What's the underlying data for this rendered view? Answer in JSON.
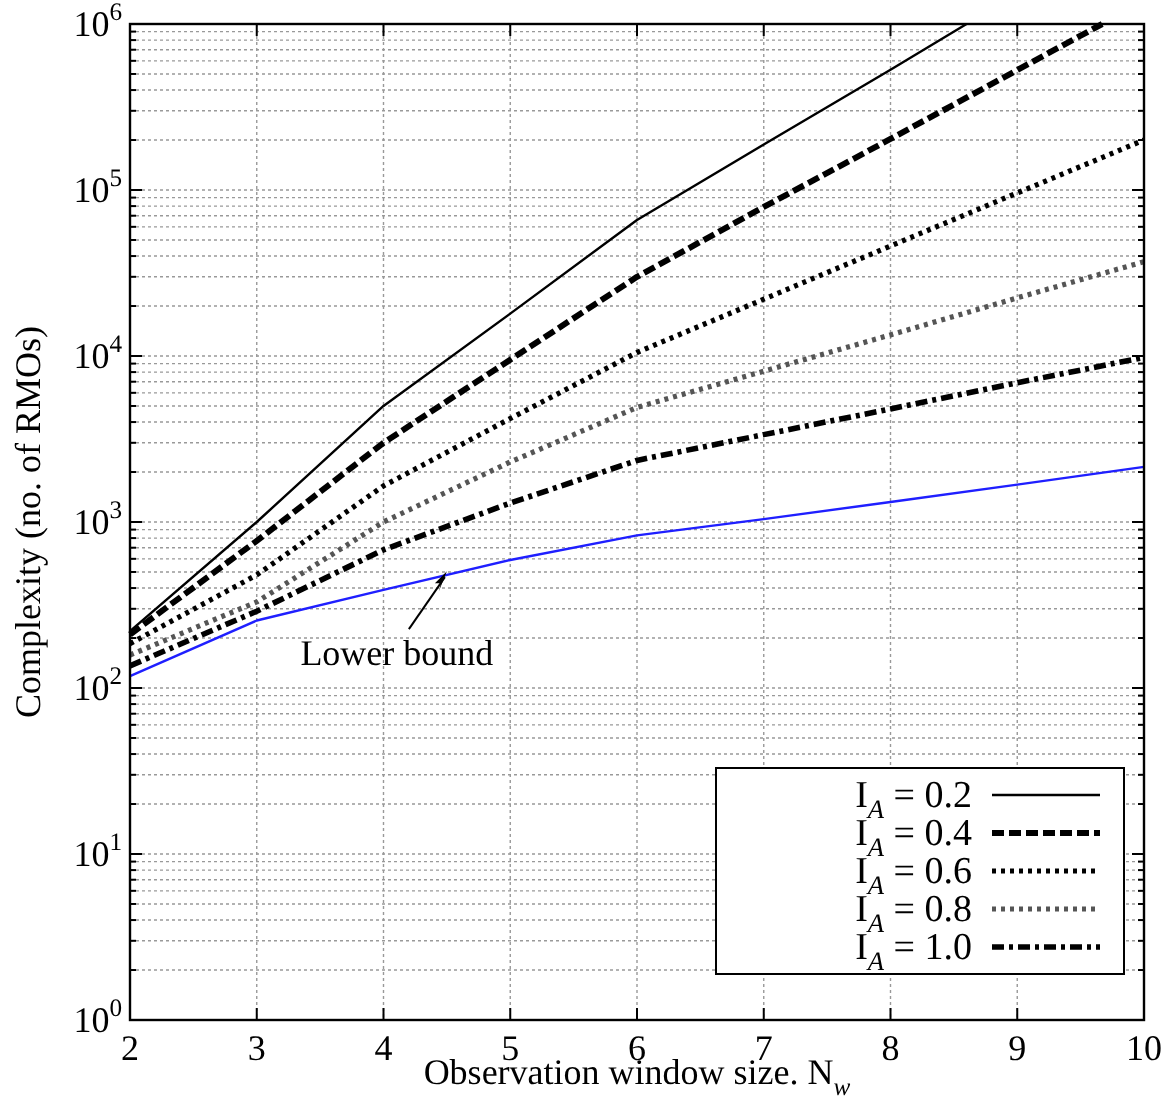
{
  "chart_data": {
    "type": "line",
    "xlabel": "Observation window size. N$_{w}$",
    "ylabel": "Complexity (no. of RMOs)",
    "log": "y",
    "grid": true,
    "legend": "bottom right",
    "x": [
      2,
      3,
      4,
      5,
      6,
      7,
      8,
      9,
      10
    ],
    "xlim": [
      2,
      10
    ],
    "xticks": [
      2,
      3,
      4,
      5,
      6,
      7,
      8,
      9,
      10
    ],
    "ylim": [
      1,
      1000000
    ],
    "yticks": [
      {
        "value": 1,
        "label": "10$^{0}$"
      },
      {
        "value": 2,
        "label": null
      },
      {
        "value": 3,
        "label": null
      },
      {
        "value": 4,
        "label": null
      },
      {
        "value": 5,
        "label": null
      },
      {
        "value": 6,
        "label": null
      },
      {
        "value": 7,
        "label": null
      },
      {
        "value": 8,
        "label": null
      },
      {
        "value": 9,
        "label": null
      },
      {
        "value": 10,
        "label": "10$^{1}$"
      },
      {
        "value": 20,
        "label": null
      },
      {
        "value": 30,
        "label": null
      },
      {
        "value": 40,
        "label": null
      },
      {
        "value": 50,
        "label": null
      },
      {
        "value": 60,
        "label": null
      },
      {
        "value": 70,
        "label": null
      },
      {
        "value": 80,
        "label": null
      },
      {
        "value": 90,
        "label": null
      },
      {
        "value": 100,
        "label": "10$^{2}$"
      },
      {
        "value": 200,
        "label": null
      },
      {
        "value": 300,
        "label": null
      },
      {
        "value": 400,
        "label": null
      },
      {
        "value": 500,
        "label": null
      },
      {
        "value": 600,
        "label": null
      },
      {
        "value": 700,
        "label": null
      },
      {
        "value": 800,
        "label": null
      },
      {
        "value": 900,
        "label": null
      },
      {
        "value": 1000,
        "label": "10$^{3}$"
      },
      {
        "value": 2000,
        "label": null
      },
      {
        "value": 3000,
        "label": null
      },
      {
        "value": 4000,
        "label": null
      },
      {
        "value": 5000,
        "label": null
      },
      {
        "value": 6000,
        "label": null
      },
      {
        "value": 7000,
        "label": null
      },
      {
        "value": 8000,
        "label": null
      },
      {
        "value": 9000,
        "label": null
      },
      {
        "value": 10000,
        "label": "10$^{4}$"
      },
      {
        "value": 20000,
        "label": null
      },
      {
        "value": 30000,
        "label": null
      },
      {
        "value": 40000,
        "label": null
      },
      {
        "value": 50000,
        "label": null
      },
      {
        "value": 60000,
        "label": null
      },
      {
        "value": 70000,
        "label": null
      },
      {
        "value": 80000,
        "label": null
      },
      {
        "value": 90000,
        "label": null
      },
      {
        "value": 100000,
        "label": "10$^{5}$"
      },
      {
        "value": 200000,
        "label": null
      },
      {
        "value": 300000,
        "label": null
      },
      {
        "value": 400000,
        "label": null
      },
      {
        "value": 500000,
        "label": null
      },
      {
        "value": 600000,
        "label": null
      },
      {
        "value": 700000,
        "label": null
      },
      {
        "value": 800000,
        "label": null
      },
      {
        "value": 900000,
        "label": null
      },
      {
        "value": 1000000,
        "label": "10$^{6}$"
      }
    ],
    "series": [
      {
        "name": "I$_{A}$ = 0.2",
        "color": "#000000",
        "line_style": "solid",
        "x": [
          2,
          3,
          4,
          5,
          6,
          7,
          8,
          8.6
        ],
        "values": [
          220,
          1000,
          5000,
          18000,
          66000,
          188000,
          530000,
          1000000
        ]
      },
      {
        "name": "I$_{A}$ = 0.4",
        "color": "#000000",
        "line_style": "dashed",
        "x": [
          2,
          3,
          4,
          5,
          6,
          7,
          8,
          9,
          9.67
        ],
        "values": [
          210,
          770,
          3000,
          9500,
          30000,
          79000,
          203000,
          528000,
          1000000
        ]
      },
      {
        "name": "I$_{A}$ = 0.6",
        "color": "#000000",
        "line_style": "dotted",
        "values": [
          185,
          480,
          1650,
          4200,
          10500,
          22000,
          46000,
          96000,
          200000
        ]
      },
      {
        "name": "I$_{A}$ = 0.8",
        "color": "#555555",
        "line_style": "dotted",
        "values": [
          158,
          330,
          1000,
          2300,
          4900,
          8100,
          13400,
          22400,
          37000
        ]
      },
      {
        "name": "I$_{A}$ = 1.0",
        "color": "#000000",
        "line_style": "dashdot",
        "values": [
          136,
          290,
          680,
          1300,
          2350,
          3360,
          4800,
          6900,
          9800
        ]
      },
      {
        "color": "#1f1fff",
        "line_style": "solid",
        "values": [
          118,
          255,
          390,
          590,
          830,
          1040,
          1320,
          1680,
          2150
        ]
      }
    ],
    "annotations": [
      {
        "text": "Lower bound",
        "x": 4.5,
        "y": 520
      }
    ]
  }
}
